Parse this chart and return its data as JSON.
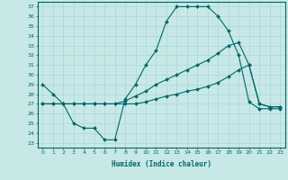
{
  "title": "",
  "xlabel": "Humidex (Indice chaleur)",
  "bg_color": "#c8e8e8",
  "line_color": "#006666",
  "grid_color": "#a8d8d8",
  "xlim": [
    -0.5,
    23.5
  ],
  "ylim": [
    22.5,
    37.5
  ],
  "xticks": [
    0,
    1,
    2,
    3,
    4,
    5,
    6,
    7,
    8,
    9,
    10,
    11,
    12,
    13,
    14,
    15,
    16,
    17,
    18,
    19,
    20,
    21,
    22,
    23
  ],
  "yticks": [
    23,
    24,
    25,
    26,
    27,
    28,
    29,
    30,
    31,
    32,
    33,
    34,
    35,
    36,
    37
  ],
  "line1_x": [
    0,
    1,
    2,
    3,
    4,
    5,
    6,
    7,
    8,
    9,
    10,
    11,
    12,
    13,
    14,
    15,
    16,
    17,
    18,
    19,
    20,
    21,
    22,
    23
  ],
  "line1_y": [
    29,
    28,
    27,
    25,
    24.5,
    24.5,
    23.3,
    23.3,
    27.5,
    29,
    31,
    32.5,
    35.5,
    37,
    37,
    37,
    37,
    36,
    34.5,
    32,
    27.2,
    26.5,
    26.5,
    26.5
  ],
  "line2_x": [
    0,
    1,
    2,
    3,
    4,
    5,
    6,
    7,
    8,
    9,
    10,
    11,
    12,
    13,
    14,
    15,
    16,
    17,
    18,
    19,
    20,
    21,
    22,
    23
  ],
  "line2_y": [
    27,
    27,
    27,
    27,
    27,
    27,
    27,
    27,
    27.3,
    27.8,
    28.3,
    29,
    29.5,
    30,
    30.5,
    31,
    31.5,
    32.2,
    33,
    33.3,
    31,
    27,
    26.7,
    26.7
  ],
  "line3_x": [
    0,
    1,
    2,
    3,
    4,
    5,
    6,
    7,
    8,
    9,
    10,
    11,
    12,
    13,
    14,
    15,
    16,
    17,
    18,
    19,
    20,
    21,
    22,
    23
  ],
  "line3_y": [
    27,
    27,
    27,
    27,
    27,
    27,
    27,
    27,
    27,
    27,
    27.2,
    27.5,
    27.8,
    28,
    28.3,
    28.5,
    28.8,
    29.2,
    29.8,
    30.5,
    31,
    27,
    26.7,
    26.7
  ]
}
